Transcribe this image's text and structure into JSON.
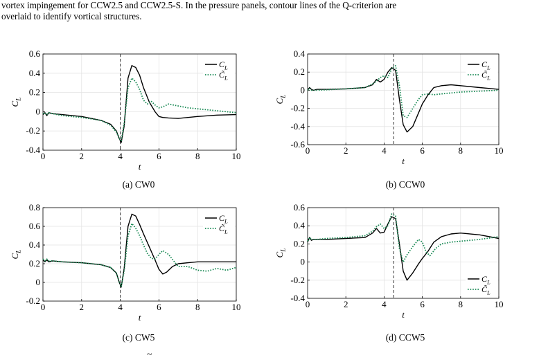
{
  "caption": {
    "line1": "vortex impingement for CCW2.5 and CCW2.5-S. In the pressure panels, contour lines of the Q-criterion are",
    "line2": "overlaid to identify vortical structures."
  },
  "bottom_fragment": "~",
  "colors": {
    "cl": "#000000",
    "cl_tilde": "#1a8a55",
    "grid": "#e3e3e3",
    "marker": "#333333"
  },
  "chart_data": [
    {
      "type": "line",
      "subcaption": "(a) CW0",
      "xlabel": "t",
      "ylabel": "C_L",
      "xlim": [
        0,
        10
      ],
      "ylim": [
        -0.4,
        0.6
      ],
      "xticks": [
        0,
        2,
        4,
        6,
        8,
        10
      ],
      "yticks": [
        -0.4,
        -0.2,
        0,
        0.2,
        0.4,
        0.6
      ],
      "ytick_labels": [
        "-0.4",
        "-0.2",
        "0",
        "0.2",
        "0.4",
        "0.6"
      ],
      "vline_x": 4.0,
      "legend": "top-right",
      "grid": true,
      "series": [
        {
          "name": "C_L",
          "style": "solid",
          "x": [
            0,
            0.1,
            0.2,
            0.3,
            0.5,
            1,
            2,
            3,
            3.5,
            3.8,
            3.95,
            4.05,
            4.2,
            4.4,
            4.6,
            4.8,
            5.0,
            5.2,
            5.5,
            5.8,
            6.0,
            6.2,
            6.5,
            7,
            7.5,
            8,
            9,
            10
          ],
          "y": [
            -0.03,
            -0.01,
            -0.04,
            -0.01,
            -0.02,
            -0.03,
            -0.05,
            -0.09,
            -0.13,
            -0.2,
            -0.28,
            -0.32,
            -0.15,
            0.35,
            0.48,
            0.46,
            0.38,
            0.25,
            0.1,
            0.0,
            -0.05,
            -0.06,
            -0.065,
            -0.07,
            -0.06,
            -0.05,
            -0.035,
            -0.03
          ]
        },
        {
          "name": "C̃_L",
          "style": "dotted",
          "x": [
            0,
            0.1,
            0.2,
            0.3,
            0.5,
            1,
            2,
            3,
            3.5,
            3.8,
            3.95,
            4.05,
            4.2,
            4.4,
            4.6,
            4.8,
            5.0,
            5.2,
            5.4,
            5.6,
            5.8,
            6.0,
            6.2,
            6.5,
            7,
            7.5,
            8,
            9,
            10
          ],
          "y": [
            -0.02,
            -0.01,
            -0.03,
            -0.01,
            -0.02,
            -0.04,
            -0.06,
            -0.09,
            -0.14,
            -0.21,
            -0.28,
            -0.3,
            -0.12,
            0.25,
            0.35,
            0.31,
            0.23,
            0.12,
            0.08,
            0.11,
            0.07,
            0.04,
            0.05,
            0.08,
            0.06,
            0.04,
            0.03,
            0.01,
            -0.01
          ]
        }
      ]
    },
    {
      "type": "line",
      "subcaption": "(b) CCW0",
      "xlabel": "t",
      "ylabel": "C_L",
      "xlim": [
        0,
        10
      ],
      "ylim": [
        -0.6,
        0.4
      ],
      "xticks": [
        0,
        2,
        4,
        6,
        8,
        10
      ],
      "yticks": [
        -0.6,
        -0.4,
        -0.2,
        0,
        0.2,
        0.4
      ],
      "ytick_labels": [
        "-0.6",
        "-0.4",
        "-0.2",
        "0",
        "0.2",
        "0.4"
      ],
      "vline_x": 4.5,
      "legend": "top-right",
      "grid": true,
      "series": [
        {
          "name": "C_L",
          "style": "solid",
          "x": [
            0,
            0.1,
            0.2,
            0.3,
            0.5,
            1,
            2,
            3,
            3.4,
            3.6,
            3.8,
            4.0,
            4.2,
            4.4,
            4.6,
            4.8,
            5.0,
            5.2,
            5.5,
            5.8,
            6.0,
            6.3,
            6.6,
            7,
            7.5,
            8,
            9,
            10
          ],
          "y": [
            0.0,
            0.03,
            0.01,
            0.0,
            0.01,
            0.01,
            0.015,
            0.03,
            0.06,
            0.12,
            0.09,
            0.12,
            0.2,
            0.25,
            0.22,
            -0.1,
            -0.38,
            -0.46,
            -0.4,
            -0.25,
            -0.15,
            -0.05,
            0.03,
            0.05,
            0.06,
            0.05,
            0.03,
            0.01
          ]
        },
        {
          "name": "C̃_L",
          "style": "dotted",
          "x": [
            0,
            0.1,
            0.2,
            0.3,
            0.5,
            1,
            2,
            3,
            3.4,
            3.6,
            3.8,
            4.0,
            4.2,
            4.4,
            4.6,
            4.8,
            5.0,
            5.2,
            5.5,
            5.8,
            6.0,
            6.3,
            6.6,
            7,
            7.5,
            8,
            9,
            10
          ],
          "y": [
            0.0,
            0.02,
            0.0,
            0.0,
            0.0,
            0.005,
            0.015,
            0.03,
            0.07,
            0.1,
            0.14,
            0.16,
            0.14,
            0.24,
            0.27,
            0.05,
            -0.28,
            -0.3,
            -0.2,
            -0.1,
            -0.05,
            -0.04,
            -0.05,
            -0.04,
            -0.03,
            -0.02,
            -0.01,
            0.0
          ]
        }
      ]
    },
    {
      "type": "line",
      "subcaption": "(c) CW5",
      "xlabel": "t",
      "ylabel": "C_L",
      "xlim": [
        0,
        10
      ],
      "ylim": [
        -0.2,
        0.8
      ],
      "xticks": [
        0,
        2,
        4,
        6,
        8,
        10
      ],
      "yticks": [
        -0.2,
        0,
        0.2,
        0.4,
        0.6,
        0.8
      ],
      "ytick_labels": [
        "-0.2",
        "0",
        "0.2",
        "0.4",
        "0.6",
        "0.8"
      ],
      "vline_x": 4.0,
      "legend": "top-right",
      "grid": true,
      "series": [
        {
          "name": "C_L",
          "style": "solid",
          "x": [
            0,
            0.1,
            0.2,
            0.3,
            0.5,
            1,
            2,
            3,
            3.5,
            3.8,
            3.95,
            4.05,
            4.2,
            4.4,
            4.6,
            4.8,
            5.0,
            5.2,
            5.5,
            5.8,
            6.0,
            6.2,
            6.4,
            6.7,
            7.0,
            7.5,
            8,
            9,
            10
          ],
          "y": [
            0.24,
            0.22,
            0.24,
            0.22,
            0.23,
            0.22,
            0.21,
            0.19,
            0.16,
            0.1,
            0.0,
            -0.05,
            0.15,
            0.6,
            0.73,
            0.71,
            0.62,
            0.52,
            0.38,
            0.24,
            0.14,
            0.09,
            0.11,
            0.17,
            0.2,
            0.21,
            0.22,
            0.22,
            0.22
          ]
        },
        {
          "name": "C̃_L",
          "style": "dotted",
          "x": [
            0,
            0.1,
            0.2,
            0.3,
            0.5,
            1,
            2,
            3,
            3.5,
            3.8,
            3.95,
            4.05,
            4.2,
            4.4,
            4.6,
            4.8,
            5.0,
            5.2,
            5.4,
            5.6,
            5.8,
            6.0,
            6.2,
            6.5,
            6.8,
            7.0,
            7.5,
            8,
            8.5,
            9,
            9.5,
            10
          ],
          "y": [
            0.25,
            0.23,
            0.25,
            0.23,
            0.23,
            0.22,
            0.21,
            0.19,
            0.16,
            0.1,
            0.0,
            -0.04,
            0.12,
            0.5,
            0.63,
            0.58,
            0.5,
            0.4,
            0.31,
            0.26,
            0.25,
            0.3,
            0.34,
            0.3,
            0.22,
            0.17,
            0.17,
            0.13,
            0.12,
            0.15,
            0.13,
            0.16
          ]
        }
      ]
    },
    {
      "type": "line",
      "subcaption": "(d) CCW5",
      "xlabel": "t",
      "ylabel": "C_L",
      "xlim": [
        0,
        10
      ],
      "ylim": [
        -0.4,
        0.6
      ],
      "xticks": [
        0,
        2,
        4,
        6,
        8,
        10
      ],
      "yticks": [
        -0.4,
        -0.2,
        0,
        0.2,
        0.4,
        0.6
      ],
      "ytick_labels": [
        "-0.4",
        "-0.2",
        "0",
        "0.2",
        "0.4",
        "0.6"
      ],
      "vline_x": 4.5,
      "legend": "bottom-right",
      "grid": true,
      "series": [
        {
          "name": "C_L",
          "style": "solid",
          "x": [
            0,
            0.1,
            0.2,
            0.3,
            0.5,
            1,
            2,
            3,
            3.4,
            3.6,
            3.8,
            4.0,
            4.2,
            4.4,
            4.6,
            4.8,
            5.0,
            5.2,
            5.5,
            5.8,
            6.0,
            6.3,
            6.6,
            7,
            7.5,
            8,
            9,
            10
          ],
          "y": [
            0.22,
            0.27,
            0.24,
            0.25,
            0.25,
            0.25,
            0.26,
            0.27,
            0.32,
            0.37,
            0.32,
            0.33,
            0.42,
            0.5,
            0.48,
            0.2,
            -0.1,
            -0.2,
            -0.12,
            -0.02,
            0.04,
            0.12,
            0.22,
            0.28,
            0.31,
            0.32,
            0.3,
            0.26
          ]
        },
        {
          "name": "C̃_L",
          "style": "dotted",
          "x": [
            0,
            0.1,
            0.2,
            0.3,
            0.5,
            1,
            2,
            3,
            3.4,
            3.6,
            3.8,
            4.0,
            4.2,
            4.4,
            4.6,
            4.8,
            5.0,
            5.2,
            5.5,
            5.8,
            6.0,
            6.2,
            6.4,
            6.7,
            7.0,
            7.5,
            8,
            9,
            10
          ],
          "y": [
            0.23,
            0.27,
            0.25,
            0.25,
            0.25,
            0.26,
            0.27,
            0.29,
            0.34,
            0.39,
            0.42,
            0.37,
            0.4,
            0.53,
            0.51,
            0.15,
            0.0,
            0.08,
            0.17,
            0.25,
            0.22,
            0.11,
            0.07,
            0.15,
            0.2,
            0.22,
            0.23,
            0.25,
            0.28
          ]
        }
      ]
    }
  ]
}
